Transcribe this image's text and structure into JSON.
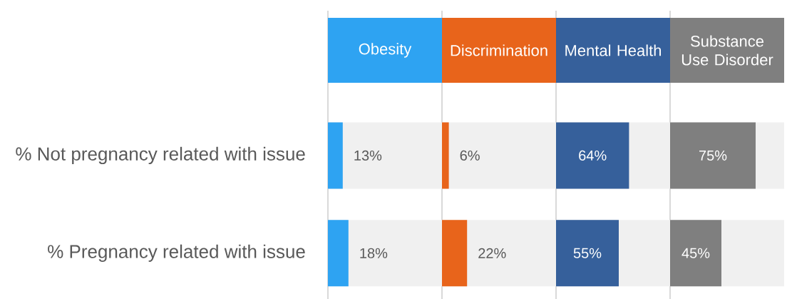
{
  "chart_data": [
    {
      "type": "bar",
      "orientation": "horizontal",
      "title": "Obesity",
      "categories": [
        "% Not pregnancy related with issue",
        "% Pregnancy related with issue"
      ],
      "xlim": [
        0,
        100
      ],
      "tick_labels": "y",
      "series": [
        {
          "color": "#2ea3f2",
          "values": [
            13,
            18
          ],
          "value_labels": [
            "13%",
            "18%"
          ]
        }
      ]
    },
    {
      "type": "bar",
      "orientation": "horizontal",
      "title": "Discrimination",
      "categories": [
        null,
        null
      ],
      "xlim": [
        0,
        100
      ],
      "tick_labels": false,
      "series": [
        {
          "color": "#e8641b",
          "values": [
            6,
            22
          ],
          "value_labels": [
            "6%",
            "22%"
          ]
        }
      ]
    },
    {
      "type": "bar",
      "orientation": "horizontal",
      "title": "Mental Health",
      "categories": [
        null,
        null
      ],
      "xlim": [
        0,
        100
      ],
      "tick_labels": false,
      "series": [
        {
          "color": "#36609b",
          "values": [
            64,
            55
          ],
          "value_labels": [
            "64%",
            "55%"
          ]
        }
      ]
    },
    {
      "type": "bar",
      "orientation": "horizontal",
      "title": "Substance Use Disorder",
      "categories": [
        null,
        null
      ],
      "xlim": [
        0,
        100
      ],
      "tick_labels": false,
      "series": [
        {
          "color": "#7f7f7f",
          "values": [
            75,
            45
          ],
          "value_labels": [
            "75%",
            "45%"
          ]
        }
      ]
    }
  ]
}
